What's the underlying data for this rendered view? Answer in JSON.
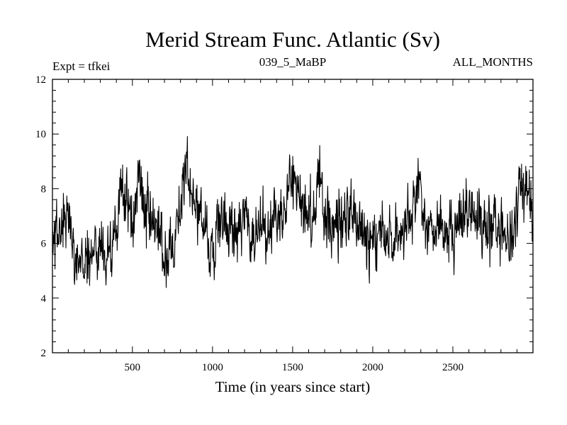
{
  "chart_data": {
    "type": "line",
    "title": "Merid Stream Func. Atlantic (Sv)",
    "subtitle_left": "Expt = tfkei",
    "subtitle_center": "039_5_MaBP",
    "subtitle_right": "ALL_MONTHS",
    "xlabel": "Time (in years since start)",
    "ylabel": "",
    "xlim": [
      1,
      3000
    ],
    "ylim": [
      2,
      12
    ],
    "xticks": [
      500,
      1000,
      1500,
      2000,
      2500
    ],
    "yticks": [
      2,
      4,
      6,
      8,
      10,
      12
    ],
    "grid": false,
    "line_color": "#000000",
    "series": [
      {
        "x": [
          1,
          50,
          100,
          150,
          200,
          250,
          300,
          350,
          400,
          430,
          460,
          500,
          540,
          580,
          620,
          660,
          700,
          750,
          800,
          840,
          880,
          920,
          960,
          1000,
          1050,
          1100,
          1150,
          1200,
          1250,
          1300,
          1350,
          1400,
          1450,
          1480,
          1520,
          1560,
          1600,
          1640,
          1670,
          1700,
          1750,
          1800,
          1850,
          1900,
          1950,
          2000,
          2050,
          2100,
          2150,
          2200,
          2250,
          2290,
          2330,
          2380,
          2430,
          2480,
          2530,
          2580,
          2630,
          2680,
          2730,
          2780,
          2830,
          2880,
          2920,
          2960,
          3000
        ],
        "y": [
          6.2,
          6.5,
          6.8,
          5.6,
          5.3,
          5.7,
          5.9,
          5.6,
          6.1,
          8.3,
          7.6,
          6.6,
          8.6,
          7.2,
          6.6,
          6.1,
          5.6,
          6.1,
          7.4,
          8.6,
          7.6,
          7.1,
          6.6,
          5.6,
          7.0,
          6.4,
          6.6,
          7.1,
          6.5,
          6.4,
          6.3,
          7.1,
          7.6,
          8.5,
          8.0,
          7.6,
          7.1,
          7.6,
          8.6,
          7.1,
          6.4,
          6.6,
          7.1,
          6.7,
          6.5,
          5.9,
          6.6,
          6.1,
          6.6,
          6.4,
          6.8,
          8.3,
          6.6,
          6.4,
          6.6,
          6.4,
          6.6,
          6.9,
          7.3,
          6.6,
          6.5,
          6.9,
          6.1,
          6.4,
          8.3,
          7.9,
          6.9
        ]
      }
    ]
  }
}
